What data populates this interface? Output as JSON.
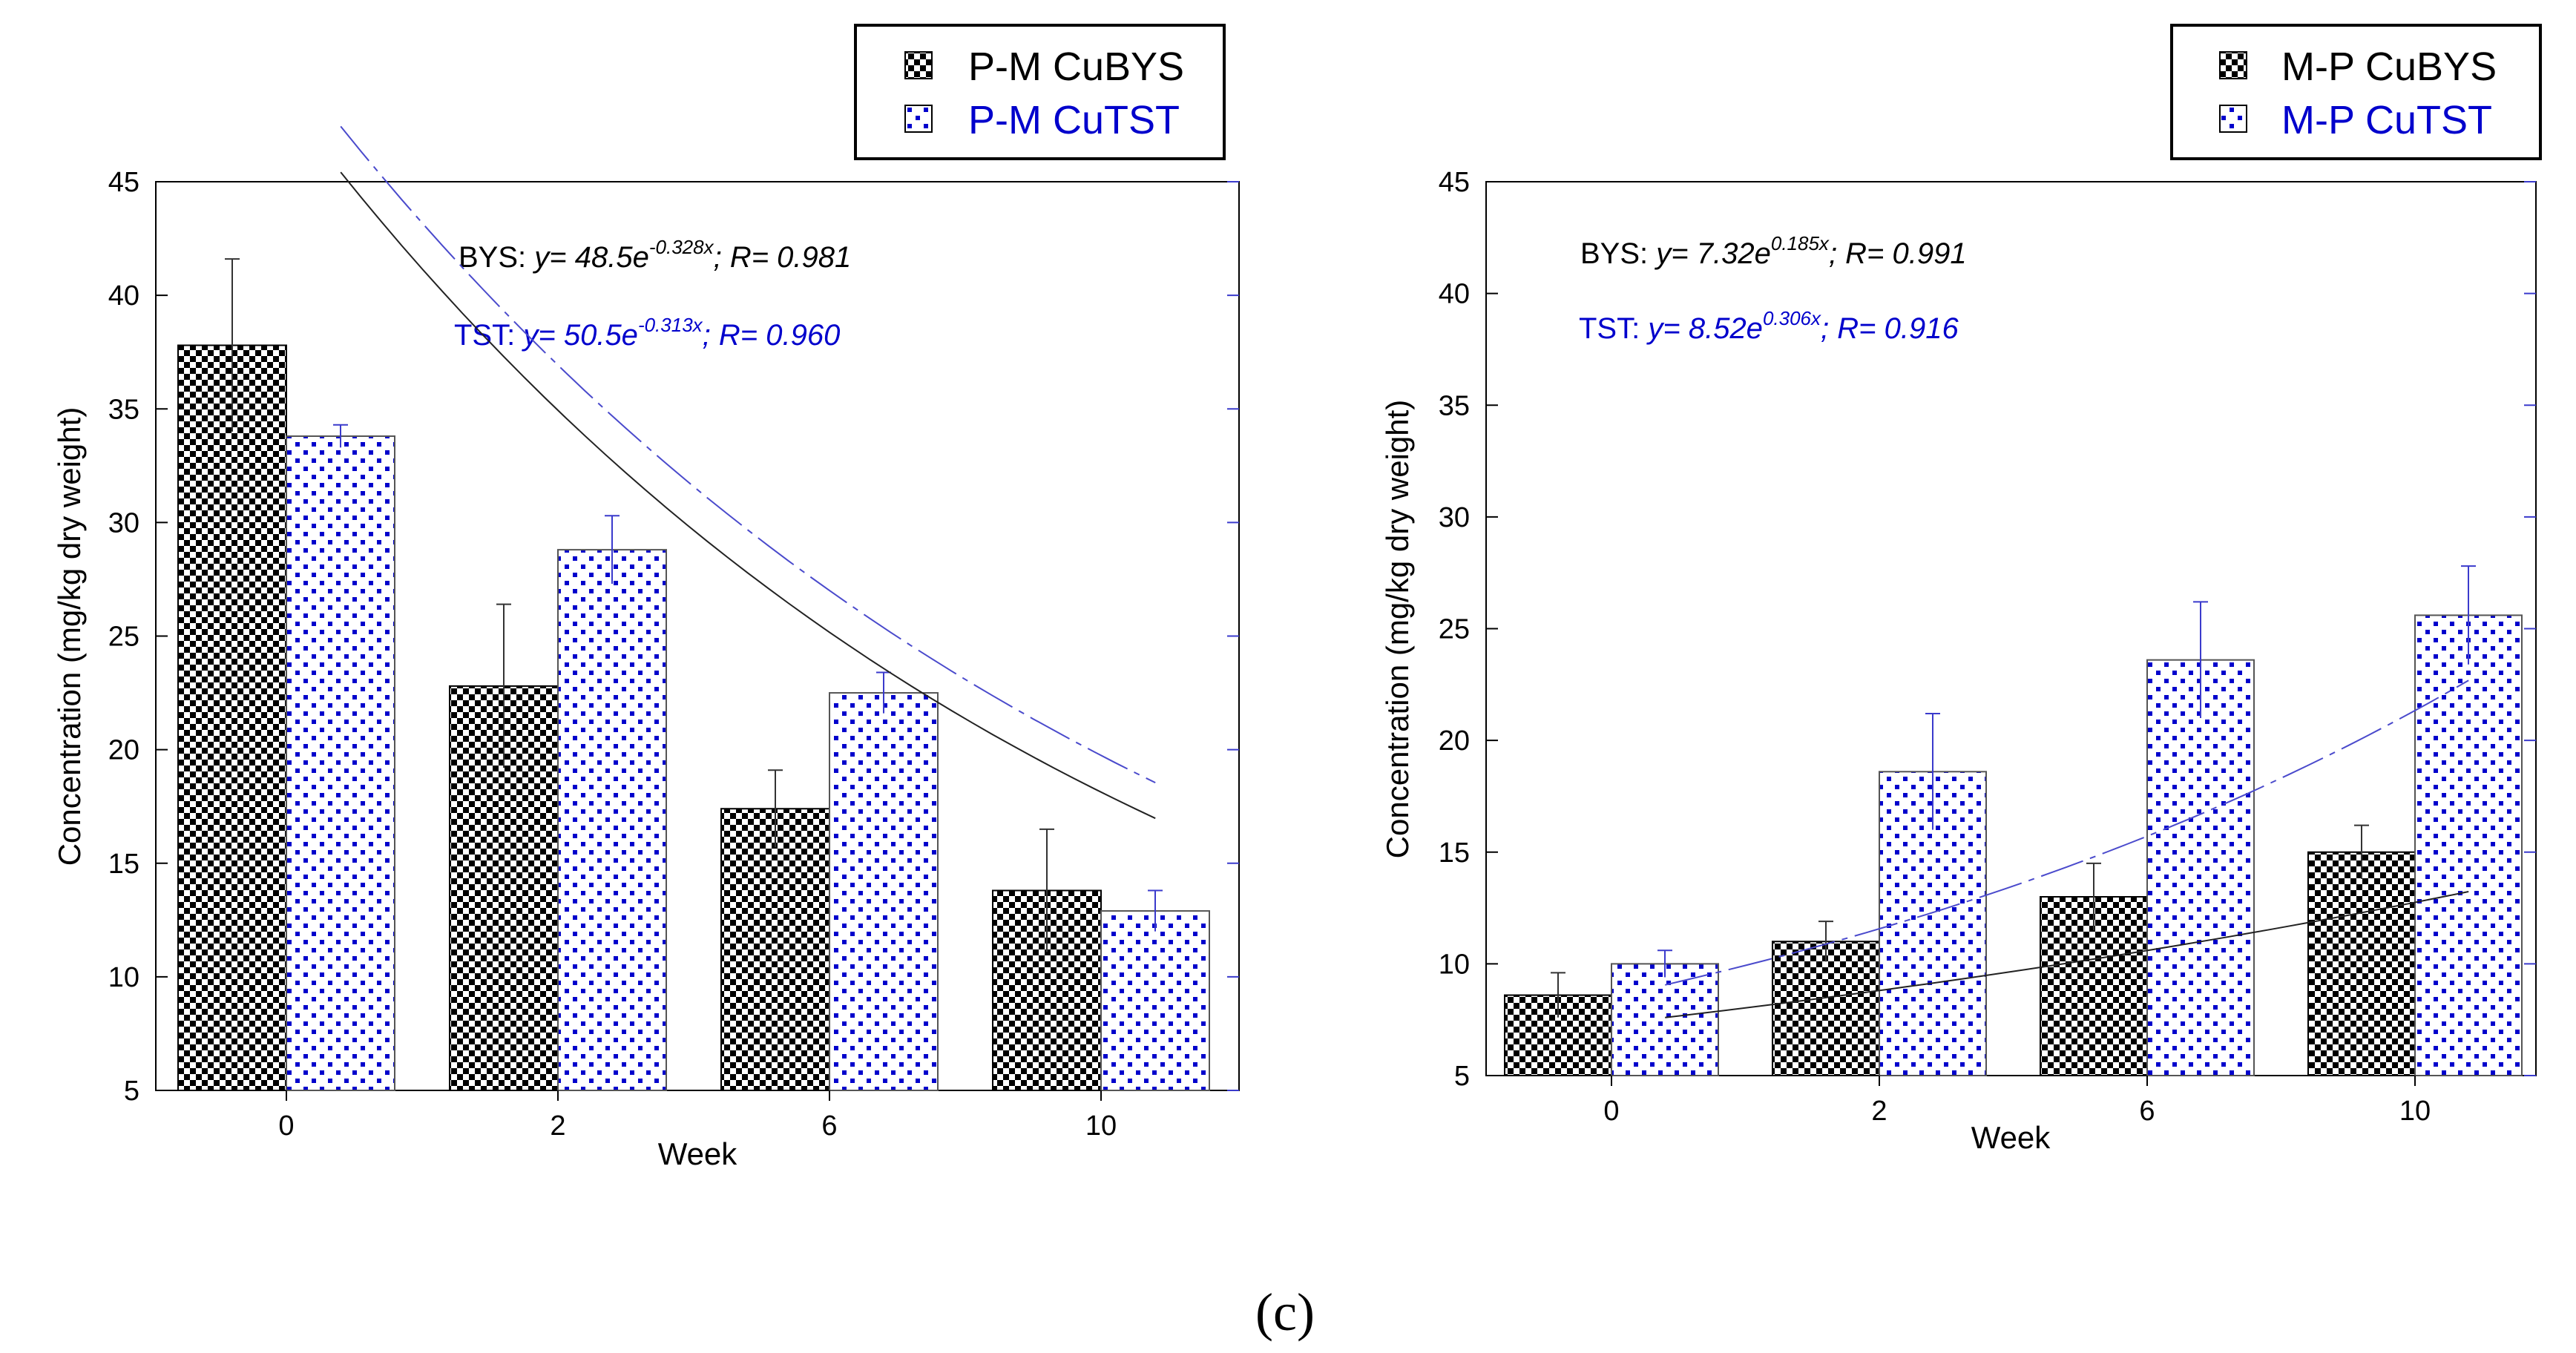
{
  "colors": {
    "bys": "#000000",
    "tst": "#0000cc",
    "fit_tst": "#4a4acc",
    "frame": "#000000"
  },
  "caption": "(c)",
  "chart_data": [
    {
      "type": "bar",
      "xlabel": "Week",
      "ylabel": "Concentration (mg/kg dry weight)",
      "ylim": [
        5,
        45
      ],
      "yticks": [
        "5",
        "10",
        "15",
        "20",
        "25",
        "30",
        "35",
        "40",
        "45"
      ],
      "categories": [
        "0",
        "2",
        "6",
        "10"
      ],
      "legend": [
        "P-M CuBYS",
        "P-M CuTST"
      ],
      "series": [
        {
          "name": "P-M CuBYS",
          "values": [
            37.8,
            22.8,
            17.4,
            13.8
          ],
          "errors": [
            3.8,
            3.6,
            1.7,
            2.7
          ]
        },
        {
          "name": "P-M CuTST",
          "values": [
            33.8,
            28.8,
            22.5,
            12.9
          ],
          "errors": [
            0.5,
            1.5,
            0.9,
            0.9
          ]
        }
      ],
      "fits": [
        {
          "series": "BYS",
          "a": 48.5,
          "b": -0.328,
          "x": [
            0.2,
            3.2
          ]
        },
        {
          "series": "TST",
          "a": 50.5,
          "b": -0.313,
          "x": [
            0.2,
            3.2
          ]
        }
      ],
      "equations": {
        "bys": {
          "label": "BYS:",
          "y_prefix": "y",
          "coef": "= 48.5e",
          "exp": "-0.328x",
          "tail": "; R= 0.981"
        },
        "tst": {
          "label": "TST:",
          "y_prefix": "y",
          "coef": "= 50.5e",
          "exp": "-0.313x",
          "tail": "; R= 0.960"
        }
      }
    },
    {
      "type": "bar",
      "xlabel": "Week",
      "ylabel": "Concentration (mg/kg dry weight)",
      "ylim": [
        5,
        45
      ],
      "yticks": [
        "5",
        "10",
        "15",
        "20",
        "25",
        "30",
        "35",
        "40",
        "45"
      ],
      "categories": [
        "0",
        "2",
        "6",
        "10"
      ],
      "legend": [
        "M-P CuBYS",
        "M-P CuTST"
      ],
      "series": [
        {
          "name": "M-P CuBYS",
          "values": [
            8.6,
            11.0,
            13.0,
            15.0
          ],
          "errors": [
            1.0,
            0.9,
            1.5,
            1.2
          ]
        },
        {
          "name": "M-P CuTST",
          "values": [
            10.0,
            18.6,
            23.6,
            25.6
          ],
          "errors": [
            0.6,
            2.6,
            2.6,
            2.2
          ]
        }
      ],
      "fits": [
        {
          "series": "BYS",
          "a": 7.32,
          "b": 0.185,
          "x": [
            0.2,
            3.2
          ]
        },
        {
          "series": "TST",
          "a": 8.52,
          "b": 0.306,
          "x": [
            0.2,
            3.2
          ]
        }
      ],
      "equations": {
        "bys": {
          "label": "BYS:",
          "y_prefix": "y",
          "coef": "= 7.32e",
          "exp": "0.185x",
          "tail": "; R= 0.991"
        },
        "tst": {
          "label": "TST:",
          "y_prefix": "y",
          "coef": "= 8.52e",
          "exp": "0.306x",
          "tail": "; R= 0.916"
        }
      }
    }
  ]
}
